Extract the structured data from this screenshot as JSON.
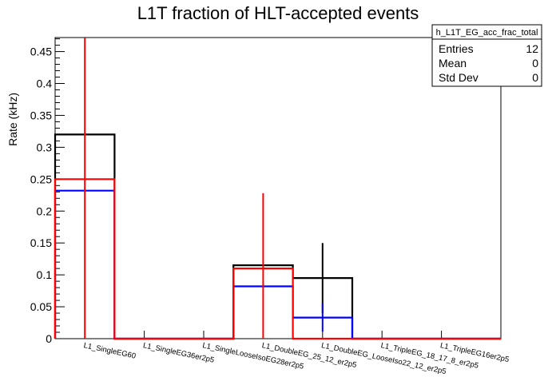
{
  "chart_data": {
    "type": "histogram",
    "title": "L1T fraction of HLT-accepted events",
    "xlabel": "",
    "ylabel": "Rate (kHz)",
    "ylim": [
      0,
      0.472
    ],
    "yticks": [
      0,
      0.05,
      0.1,
      0.15,
      0.2,
      0.25,
      0.3,
      0.35,
      0.4,
      0.45
    ],
    "ytick_labels": [
      "0",
      "0.05",
      "0.1",
      "0.15",
      "0.2",
      "0.25",
      "0.3",
      "0.35",
      "0.4",
      "0.45"
    ],
    "categories": [
      "L1_SingleEG60",
      "L1_SingleEG36er2p5",
      "L1_SingleLooseIsoEG28er2p5",
      "L1_DoubleEG_25_12_er2p5",
      "L1_DoubleEG_LooseIso22_12_er2p5",
      "L1_TripleEG_18_17_8_er2p5",
      "L1_TripleEG16er2p5"
    ],
    "series": [
      {
        "color": "#000000",
        "values": [
          0.32,
          0,
          0,
          0.115,
          0.095,
          0,
          0
        ],
        "err": [
          null,
          null,
          null,
          null,
          0.055,
          null,
          null
        ]
      },
      {
        "color": "#0000ff",
        "values": [
          0.232,
          0,
          0,
          0.082,
          0.033,
          0,
          0
        ],
        "err": [
          null,
          null,
          null,
          null,
          0.022,
          null,
          null
        ]
      },
      {
        "color": "#ff0000",
        "values": [
          0.25,
          0,
          0,
          0.11,
          0,
          0,
          0
        ],
        "err": [
          0.25,
          null,
          null,
          0.118,
          null,
          null,
          null
        ]
      }
    ],
    "stats_box": {
      "name": "h_L1T_EG_acc_frac_total",
      "rows": [
        {
          "label": "Entries",
          "value": "12"
        },
        {
          "label": "Mean",
          "value": "0"
        },
        {
          "label": "Std Dev",
          "value": "0"
        }
      ]
    }
  }
}
